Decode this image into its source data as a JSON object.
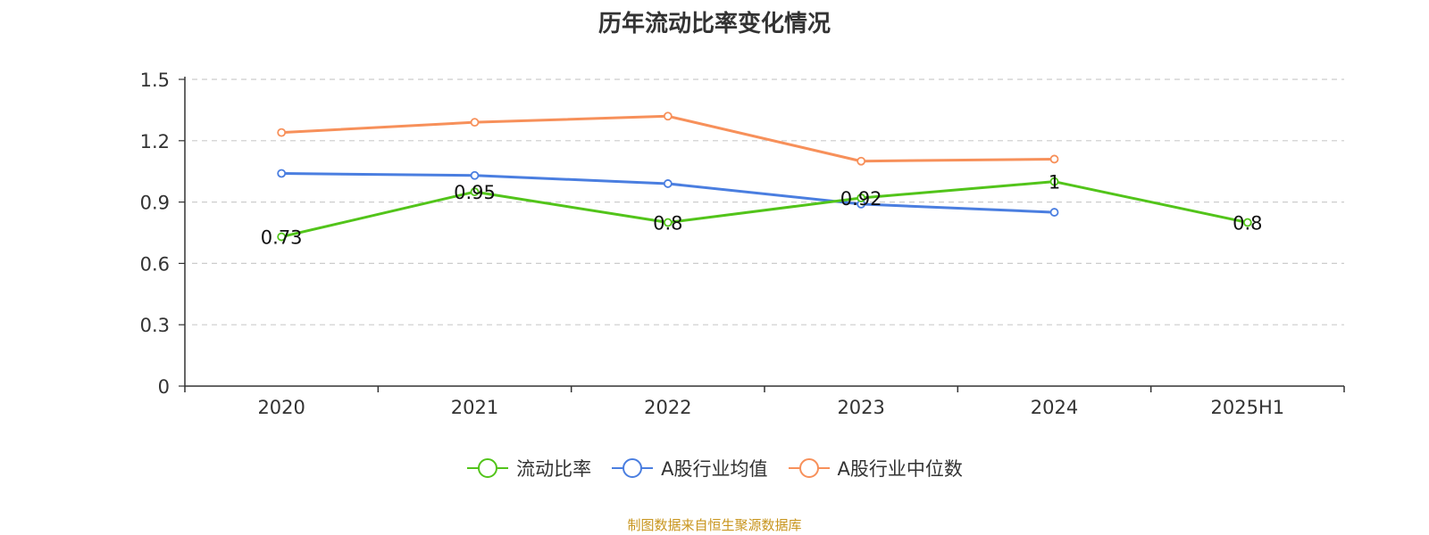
{
  "chart_data": {
    "type": "line",
    "title": "历年流动比率变化情况",
    "categories": [
      "2020",
      "2021",
      "2022",
      "2023",
      "2024",
      "2025H1"
    ],
    "ylim": [
      0,
      1.5
    ],
    "yticks": [
      "0",
      "0.3",
      "0.6",
      "0.9",
      "1.2",
      "1.5"
    ],
    "grid": true,
    "legend_position": "bottom",
    "series": [
      {
        "name": "流动比率",
        "color": "#52c41a",
        "values": [
          0.73,
          0.95,
          0.8,
          0.92,
          1,
          0.8
        ],
        "labels": [
          "0.73",
          "0.95",
          "0.8",
          "0.92",
          "1",
          "0.8"
        ]
      },
      {
        "name": "A股行业均值",
        "color": "#4a7ee0",
        "values": [
          1.04,
          1.03,
          0.99,
          0.89,
          0.85,
          null
        ]
      },
      {
        "name": "A股行业中位数",
        "color": "#f7905a",
        "values": [
          1.24,
          1.29,
          1.32,
          1.1,
          1.11,
          null
        ]
      }
    ]
  },
  "source": {
    "text": "制图数据来自恒生聚源数据库",
    "color": "#c8951e"
  }
}
